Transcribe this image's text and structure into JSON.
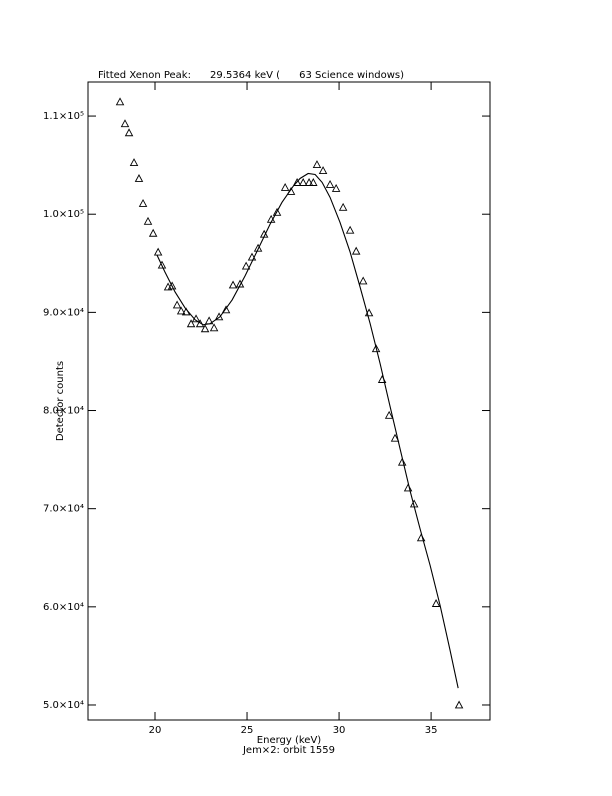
{
  "chart_data": {
    "type": "scatter",
    "title": "Fitted Xenon Peak:      29.5364 keV (      63 Science windows)",
    "x_label": "Energy (keV)",
    "subtitle": "Jem×2: orbit 1559",
    "y_label": "Detector counts",
    "xlim": [
      16.36,
      38.2
    ],
    "ylim": [
      48470,
      113470
    ],
    "xticks": [
      20,
      25,
      30,
      35
    ],
    "yticks": [
      {
        "value": 50000,
        "label": "5.0×10⁴"
      },
      {
        "value": 60000,
        "label": "6.0×10⁴"
      },
      {
        "value": 70000,
        "label": "7.0×10⁴"
      },
      {
        "value": 80000,
        "label": "8.0×10⁴"
      },
      {
        "value": 90000,
        "label": "9.0×10⁴"
      },
      {
        "value": 100000,
        "label": "1.0×10⁵"
      },
      {
        "value": 110000,
        "label": "1.1×10⁵"
      }
    ],
    "series": [
      {
        "style": "triangle",
        "color": "#000000",
        "x": [
          18.1,
          18.37,
          18.59,
          18.86,
          19.13,
          19.35,
          19.62,
          19.9,
          20.17,
          20.38,
          20.71,
          20.93,
          21.2,
          21.42,
          21.69,
          21.96,
          22.23,
          22.45,
          22.72,
          22.94,
          23.21,
          23.48,
          23.86,
          24.24,
          24.62,
          24.95,
          25.27,
          25.6,
          25.93,
          26.31,
          26.63,
          27.07,
          27.39,
          27.72,
          28.05,
          28.37,
          28.6,
          28.8,
          29.13,
          29.51,
          29.84,
          30.22,
          30.6,
          30.93,
          31.31,
          31.63,
          32.01,
          32.34,
          32.72,
          33.04,
          33.43,
          33.75,
          34.08,
          34.46,
          35.27,
          36.52
        ],
        "values": [
          111450,
          109220,
          108300,
          105260,
          103640,
          101100,
          99280,
          98060,
          96140,
          94820,
          92590,
          92690,
          90760,
          90150,
          90050,
          88840,
          89340,
          88840,
          88330,
          89140,
          88430,
          89550,
          90260,
          92790,
          92890,
          94720,
          95630,
          96540,
          97960,
          99480,
          100190,
          102730,
          102320,
          103230,
          103230,
          103230,
          103230,
          105060,
          104450,
          103030,
          102630,
          100700,
          98370,
          96240,
          93200,
          89950,
          86300,
          83160,
          79510,
          77180,
          74740,
          72110,
          70480,
          67030,
          60340,
          50000
        ]
      },
      {
        "style": "line",
        "color": "#000000",
        "x": [
          20.11,
          20.54,
          21.09,
          21.63,
          22.18,
          22.61,
          22.99,
          23.53,
          24.19,
          24.89,
          25.6,
          26.25,
          26.9,
          27.5,
          27.88,
          28.32,
          28.7,
          29.08,
          29.51,
          30.05,
          30.6,
          31.14,
          31.69,
          32.23,
          32.77,
          33.32,
          33.86,
          34.4,
          34.95,
          35.49,
          36.03,
          36.47
        ],
        "values": [
          95830,
          94110,
          92080,
          90460,
          89240,
          88740,
          88840,
          89550,
          91270,
          93710,
          96440,
          98980,
          101210,
          102830,
          103640,
          104150,
          104050,
          103240,
          101720,
          99180,
          96140,
          92590,
          88840,
          84780,
          80420,
          76060,
          71800,
          67950,
          64200,
          60140,
          55580,
          51720
        ]
      }
    ]
  }
}
